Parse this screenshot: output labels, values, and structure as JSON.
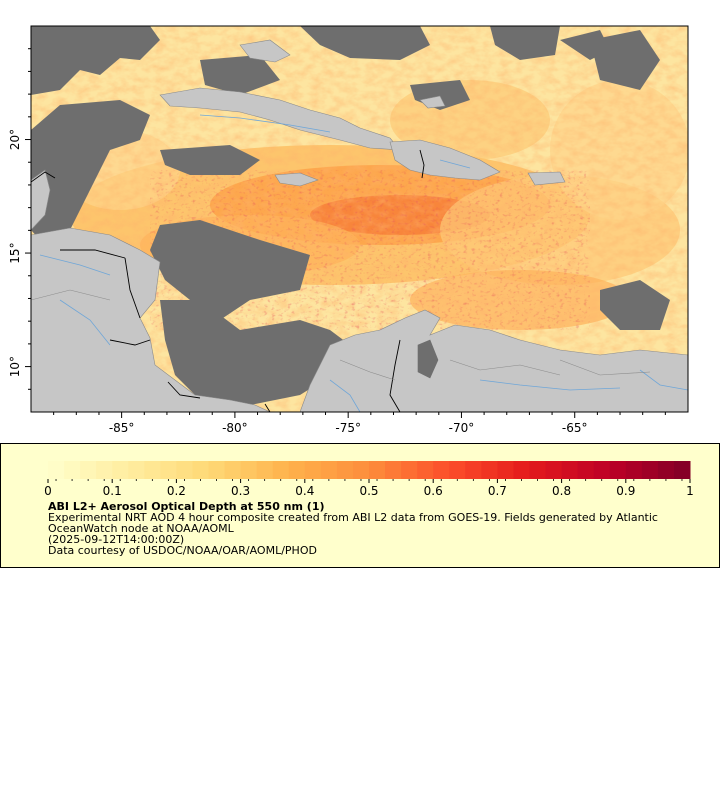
{
  "map": {
    "x_ticks": [
      {
        "lon": -85,
        "label": "-85°"
      },
      {
        "lon": -80,
        "label": "-80°"
      },
      {
        "lon": -75,
        "label": "-75°"
      },
      {
        "lon": -70,
        "label": "-70°"
      },
      {
        "lon": -65,
        "label": "-65°"
      }
    ],
    "y_ticks": [
      {
        "lat": 20,
        "label": "20°"
      },
      {
        "lat": 15,
        "label": "15°"
      },
      {
        "lat": 10,
        "label": "10°"
      }
    ],
    "lon_range": [
      -89,
      -60
    ],
    "lat_range": [
      8,
      25
    ],
    "land_color": "#c6c6c6",
    "nodata_color": "#6e6e6e",
    "border_color": "#000000",
    "river_color": "#6fa6d8"
  },
  "legend": {
    "colorbar_ticks": [
      "0",
      "0.1",
      "0.2",
      "0.3",
      "0.4",
      "0.5",
      "0.6",
      "0.7",
      "0.8",
      "0.9",
      "1"
    ],
    "colorbar_range": [
      0,
      1
    ],
    "colorbar_stops": [
      "#ffffcc",
      "#ffeda0",
      "#fed976",
      "#feb24c",
      "#fd8d3c",
      "#fc4e2a",
      "#e31a1c",
      "#bd0026",
      "#800026"
    ],
    "title": "ABI L2+ Aerosol Optical Depth at 550 nm (1)",
    "description": "Experimental NRT AOD 4 hour composite created from ABI L2 data from GOES-19. Fields generated by Atlantic OceanWatch node at NOAA/AOML",
    "timestamp": "(2025-09-12T14:00:00Z)",
    "credit": "Data courtesy of USDOC/NOAA/OAR/AOML/PHOD"
  }
}
